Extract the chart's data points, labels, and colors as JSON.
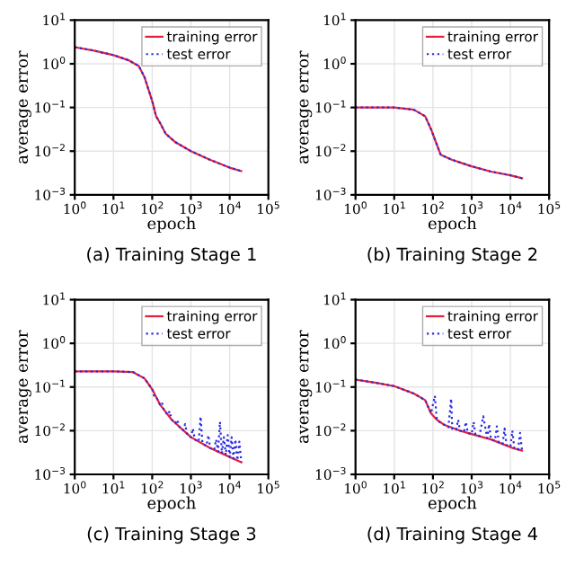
{
  "chart_data": [
    {
      "type": "line",
      "title": "(a) Training Stage 1",
      "xlabel": "epoch",
      "ylabel": "average error",
      "log": "xy",
      "grid": true,
      "legend": "top right",
      "xlim": [
        1,
        100000
      ],
      "ylim": [
        0.001,
        10
      ],
      "xticks": [
        {
          "value": 1,
          "label": "10$^{0}$"
        },
        {
          "value": 10,
          "label": "10$^{1}$"
        },
        {
          "value": 100,
          "label": "10$^{2}$"
        },
        {
          "value": 1000,
          "label": "10$^{3}$"
        },
        {
          "value": 10000,
          "label": "10$^{4}$"
        },
        {
          "value": 100000,
          "label": "10$^{5}$"
        }
      ],
      "yticks": [
        {
          "value": 0.001,
          "label": "10$^{−3}$"
        },
        {
          "value": 0.01,
          "label": "10$^{−2}$"
        },
        {
          "value": 0.1,
          "label": "10$^{−1}$"
        },
        {
          "value": 1,
          "label": "10$^{0}$"
        },
        {
          "value": 10,
          "label": "10$^{1}$"
        }
      ],
      "series": [
        {
          "name": "training error",
          "color": "#e8203a",
          "line_style": "solid",
          "x": [
            1,
            3.16,
            10,
            25,
            45,
            63,
            100,
            126,
            158,
            224,
            398,
            1000,
            3162,
            10000,
            20000
          ],
          "values": [
            2.4,
            2.0,
            1.58,
            1.2,
            0.89,
            0.5,
            0.141,
            0.063,
            0.045,
            0.025,
            0.016,
            0.01,
            0.0063,
            0.0042,
            0.0035
          ]
        },
        {
          "name": "test error",
          "color": "#2a2ae0",
          "line_style": "dotted",
          "x": [
            1,
            3.16,
            10,
            25,
            45,
            63,
            100,
            126,
            158,
            224,
            398,
            1000,
            3162,
            10000,
            20000
          ],
          "values": [
            2.4,
            2.0,
            1.58,
            1.2,
            0.89,
            0.5,
            0.141,
            0.063,
            0.045,
            0.025,
            0.016,
            0.01,
            0.0063,
            0.0042,
            0.0035
          ]
        }
      ]
    },
    {
      "type": "line",
      "title": "(b) Training Stage 2",
      "xlabel": "epoch",
      "ylabel": "average error",
      "log": "xy",
      "grid": true,
      "legend": "top right",
      "xlim": [
        1,
        100000
      ],
      "ylim": [
        0.001,
        10
      ],
      "xticks": [
        {
          "value": 1,
          "label": "10$^{0}$"
        },
        {
          "value": 10,
          "label": "10$^{1}$"
        },
        {
          "value": 100,
          "label": "10$^{2}$"
        },
        {
          "value": 1000,
          "label": "10$^{3}$"
        },
        {
          "value": 10000,
          "label": "10$^{4}$"
        },
        {
          "value": 100000,
          "label": "10$^{5}$"
        }
      ],
      "yticks": [
        {
          "value": 0.001,
          "label": "10$^{−3}$"
        },
        {
          "value": 0.01,
          "label": "10$^{−2}$"
        },
        {
          "value": 0.1,
          "label": "10$^{−1}$"
        },
        {
          "value": 1,
          "label": "10$^{0}$"
        },
        {
          "value": 10,
          "label": "10$^{1}$"
        }
      ],
      "series": [
        {
          "name": "training error",
          "color": "#e8203a",
          "line_style": "solid",
          "x": [
            1,
            10,
            32,
            63,
            89,
            126,
            158,
            316,
            1000,
            3162,
            10000,
            20000
          ],
          "values": [
            0.1,
            0.1,
            0.089,
            0.063,
            0.032,
            0.0141,
            0.0083,
            0.0063,
            0.0045,
            0.0034,
            0.0028,
            0.0024
          ]
        },
        {
          "name": "test error",
          "color": "#2a2ae0",
          "line_style": "dotted",
          "x": [
            1,
            10,
            32,
            63,
            89,
            126,
            158,
            316,
            1000,
            3162,
            10000,
            20000
          ],
          "values": [
            0.1,
            0.1,
            0.089,
            0.063,
            0.032,
            0.0141,
            0.0083,
            0.0063,
            0.0045,
            0.0034,
            0.0028,
            0.0024
          ]
        }
      ]
    },
    {
      "type": "line",
      "title": "(c) Training Stage 3",
      "xlabel": "epoch",
      "ylabel": "average error",
      "log": "xy",
      "grid": true,
      "legend": "top right",
      "xlim": [
        1,
        100000
      ],
      "ylim": [
        0.001,
        10
      ],
      "xticks": [
        {
          "value": 1,
          "label": "10$^{0}$"
        },
        {
          "value": 10,
          "label": "10$^{1}$"
        },
        {
          "value": 100,
          "label": "10$^{2}$"
        },
        {
          "value": 1000,
          "label": "10$^{3}$"
        },
        {
          "value": 10000,
          "label": "10$^{4}$"
        },
        {
          "value": 100000,
          "label": "10$^{5}$"
        }
      ],
      "yticks": [
        {
          "value": 0.001,
          "label": "10$^{−3}$"
        },
        {
          "value": 0.01,
          "label": "10$^{−2}$"
        },
        {
          "value": 0.1,
          "label": "10$^{−1}$"
        },
        {
          "value": 1,
          "label": "10$^{0}$"
        },
        {
          "value": 10,
          "label": "10$^{1}$"
        }
      ],
      "series": [
        {
          "name": "training error",
          "color": "#e8203a",
          "line_style": "solid",
          "x": [
            1,
            10,
            32,
            63,
            100,
            158,
            316,
            1000,
            3162,
            10000,
            20000
          ],
          "values": [
            0.229,
            0.229,
            0.219,
            0.158,
            0.089,
            0.04,
            0.018,
            0.0071,
            0.004,
            0.0025,
            0.0019
          ]
        },
        {
          "name": "test error",
          "color": "#2a2ae0",
          "line_style": "dotted",
          "x": [
            1,
            10,
            32,
            63,
            100,
            112,
            126,
            158,
            178,
            200,
            251,
            282,
            316,
            398,
            447,
            501,
            631,
            708,
            794,
            1000,
            1122,
            1259,
            1585,
            1778,
            1995,
            2512,
            2818,
            3162,
            3981,
            4467,
            5012,
            5623,
            6310,
            7079,
            7943,
            8913,
            10000,
            11220,
            12589,
            14125,
            15849,
            17783,
            20000
          ],
          "values": [
            0.229,
            0.229,
            0.219,
            0.158,
            0.089,
            0.063,
            0.06,
            0.04,
            0.045,
            0.03,
            0.023,
            0.028,
            0.018,
            0.0148,
            0.0178,
            0.0123,
            0.0102,
            0.0141,
            0.0085,
            0.0071,
            0.0112,
            0.0063,
            0.0056,
            0.021,
            0.005,
            0.0045,
            0.0079,
            0.004,
            0.0036,
            0.0063,
            0.0033,
            0.016,
            0.003,
            0.0071,
            0.0028,
            0.0079,
            0.0025,
            0.0071,
            0.0023,
            0.0063,
            0.0021,
            0.0056,
            0.0019
          ]
        }
      ]
    },
    {
      "type": "line",
      "title": "(d) Training Stage 4",
      "xlabel": "epoch",
      "ylabel": "average error",
      "log": "xy",
      "grid": true,
      "legend": "top right",
      "xlim": [
        1,
        100000
      ],
      "ylim": [
        0.001,
        10
      ],
      "xticks": [
        {
          "value": 1,
          "label": "10$^{0}$"
        },
        {
          "value": 10,
          "label": "10$^{1}$"
        },
        {
          "value": 100,
          "label": "10$^{2}$"
        },
        {
          "value": 1000,
          "label": "10$^{3}$"
        },
        {
          "value": 10000,
          "label": "10$^{4}$"
        },
        {
          "value": 100000,
          "label": "10$^{5}$"
        }
      ],
      "yticks": [
        {
          "value": 0.001,
          "label": "10$^{−3}$"
        },
        {
          "value": 0.01,
          "label": "10$^{−2}$"
        },
        {
          "value": 0.1,
          "label": "10$^{−1}$"
        },
        {
          "value": 1,
          "label": "10$^{0}$"
        },
        {
          "value": 10,
          "label": "10$^{1}$"
        }
      ],
      "series": [
        {
          "name": "training error",
          "color": "#e8203a",
          "line_style": "solid",
          "x": [
            1,
            3.16,
            10,
            32,
            63,
            89,
            126,
            200,
            501,
            1259,
            3162,
            11500,
            20000
          ],
          "values": [
            0.148,
            0.126,
            0.105,
            0.071,
            0.05,
            0.025,
            0.0178,
            0.0135,
            0.01,
            0.0079,
            0.0063,
            0.004,
            0.0035
          ]
        },
        {
          "name": "test error",
          "color": "#2a2ae0",
          "line_style": "dotted",
          "x": [
            1,
            3.16,
            10,
            32,
            63,
            89,
            112,
            126,
            158,
            200,
            251,
            295,
            316,
            398,
            447,
            501,
            631,
            708,
            794,
            1000,
            1122,
            1259,
            1585,
            1995,
            2512,
            2818,
            3162,
            3981,
            4467,
            5012,
            6310,
            7079,
            7943,
            10000,
            11220,
            12589,
            15849,
            17783,
            20000
          ],
          "values": [
            0.148,
            0.126,
            0.105,
            0.071,
            0.05,
            0.025,
            0.063,
            0.0178,
            0.0151,
            0.0135,
            0.012,
            0.054,
            0.011,
            0.0105,
            0.0178,
            0.01,
            0.0093,
            0.0158,
            0.0089,
            0.0083,
            0.0158,
            0.0079,
            0.0076,
            0.0214,
            0.0068,
            0.0141,
            0.0063,
            0.0059,
            0.0126,
            0.0054,
            0.005,
            0.0112,
            0.0047,
            0.0043,
            0.01,
            0.004,
            0.0037,
            0.0089,
            0.0035
          ]
        }
      ]
    }
  ]
}
